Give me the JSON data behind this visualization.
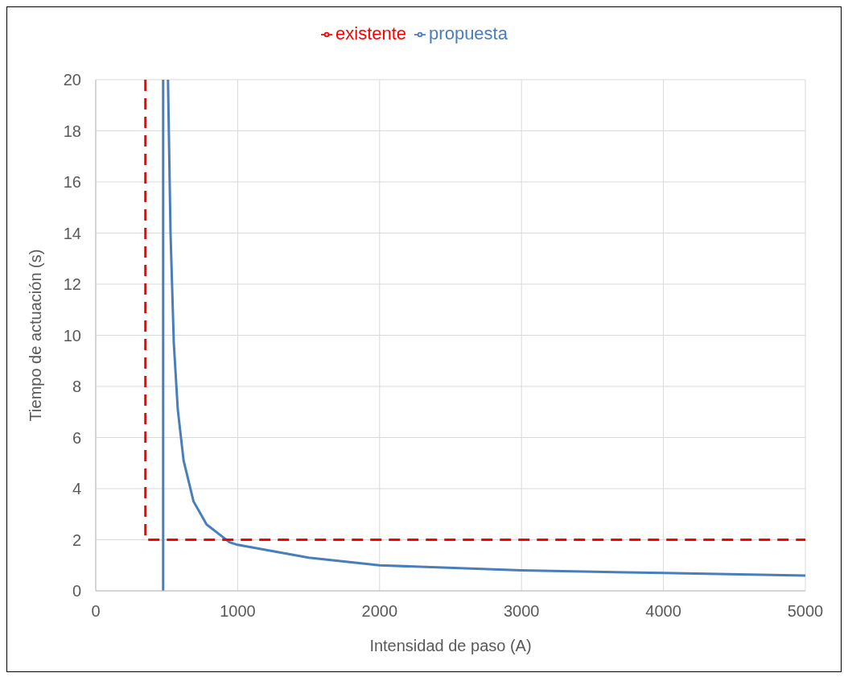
{
  "chart_data": {
    "type": "line",
    "xlabel": "Intensidad de paso (A)",
    "ylabel": "Tiempo de  actuación (s)",
    "xlim": [
      0,
      5000
    ],
    "xticks": [
      0,
      1000,
      2000,
      3000,
      4000,
      5000
    ],
    "ylim": [
      0,
      20
    ],
    "yticks": [
      0,
      2,
      4,
      6,
      8,
      10,
      12,
      14,
      16,
      18,
      20
    ],
    "grid": true,
    "legend": "top",
    "marker": "none",
    "series": [
      {
        "name": "propuesta",
        "color": "#4a7ebb",
        "line_style": "solid",
        "x": [
          475,
          475,
          null,
          509,
          527,
          550,
          578,
          619,
          689,
          781,
          943,
          1000,
          1500,
          2000,
          3000,
          4000,
          5000
        ],
        "values": [
          0,
          20,
          null,
          20,
          14,
          9.7,
          7.1,
          5.1,
          3.5,
          2.6,
          1.9,
          1.8,
          1.3,
          1.0,
          0.8,
          0.7,
          0.6
        ]
      },
      {
        "name": "existente",
        "color": "#ff0000",
        "line_style": "dashed",
        "x": [
          350,
          350,
          5000
        ],
        "values": [
          20,
          2,
          2
        ]
      }
    ]
  }
}
